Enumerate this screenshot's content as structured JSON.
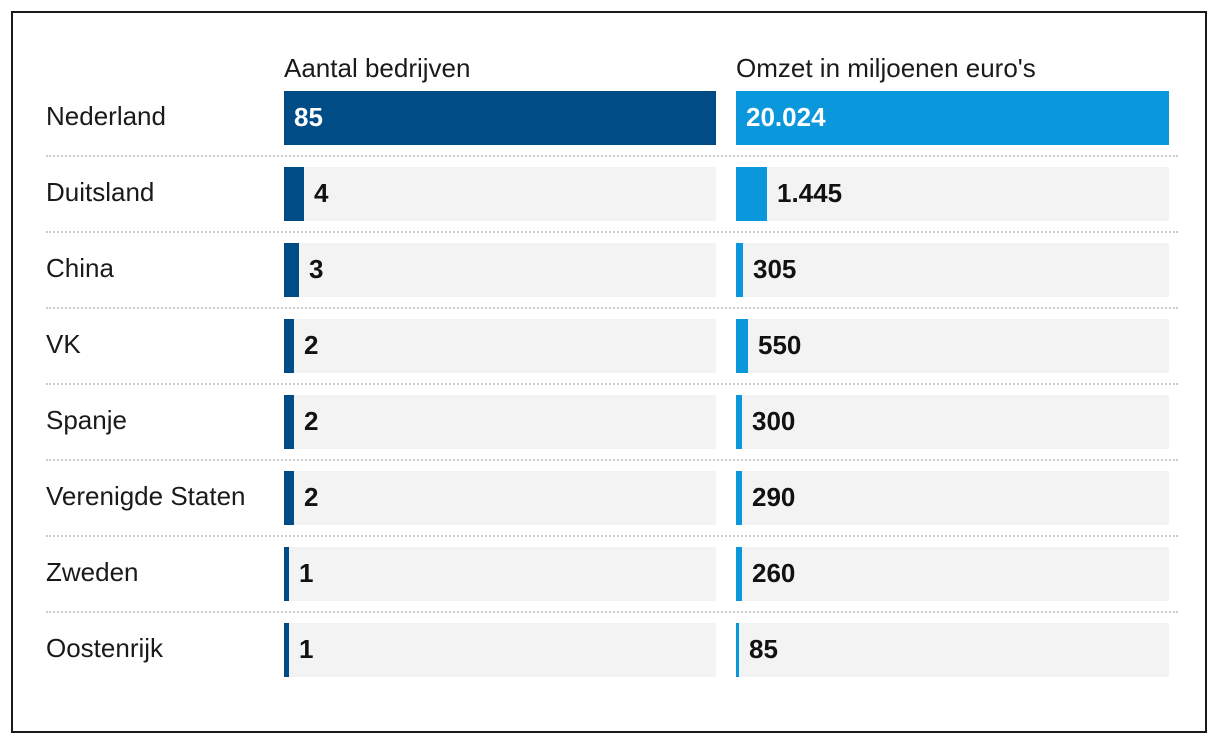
{
  "chart_data": {
    "type": "bar",
    "categories": [
      "Nederland",
      "Duitsland",
      "China",
      "VK",
      "Spanje",
      "Verenigde Staten",
      "Zweden",
      "Oostenrijk"
    ],
    "series": [
      {
        "name": "Aantal bedrijven",
        "values": [
          85,
          4,
          3,
          2,
          2,
          2,
          1,
          1
        ],
        "labels": [
          "85",
          "4",
          "3",
          "2",
          "2",
          "2",
          "1",
          "1"
        ],
        "color": "#004c87"
      },
      {
        "name": "Omzet in miljoenen euro's",
        "values": [
          20024,
          1445,
          305,
          550,
          300,
          290,
          260,
          85
        ],
        "labels": [
          "20.024",
          "1.445",
          "305",
          "550",
          "300",
          "290",
          "260",
          "85"
        ],
        "color": "#0b97dc"
      }
    ],
    "track_color": "#f3f3f3",
    "orientation": "horizontal",
    "layout": "two panels side by side"
  }
}
